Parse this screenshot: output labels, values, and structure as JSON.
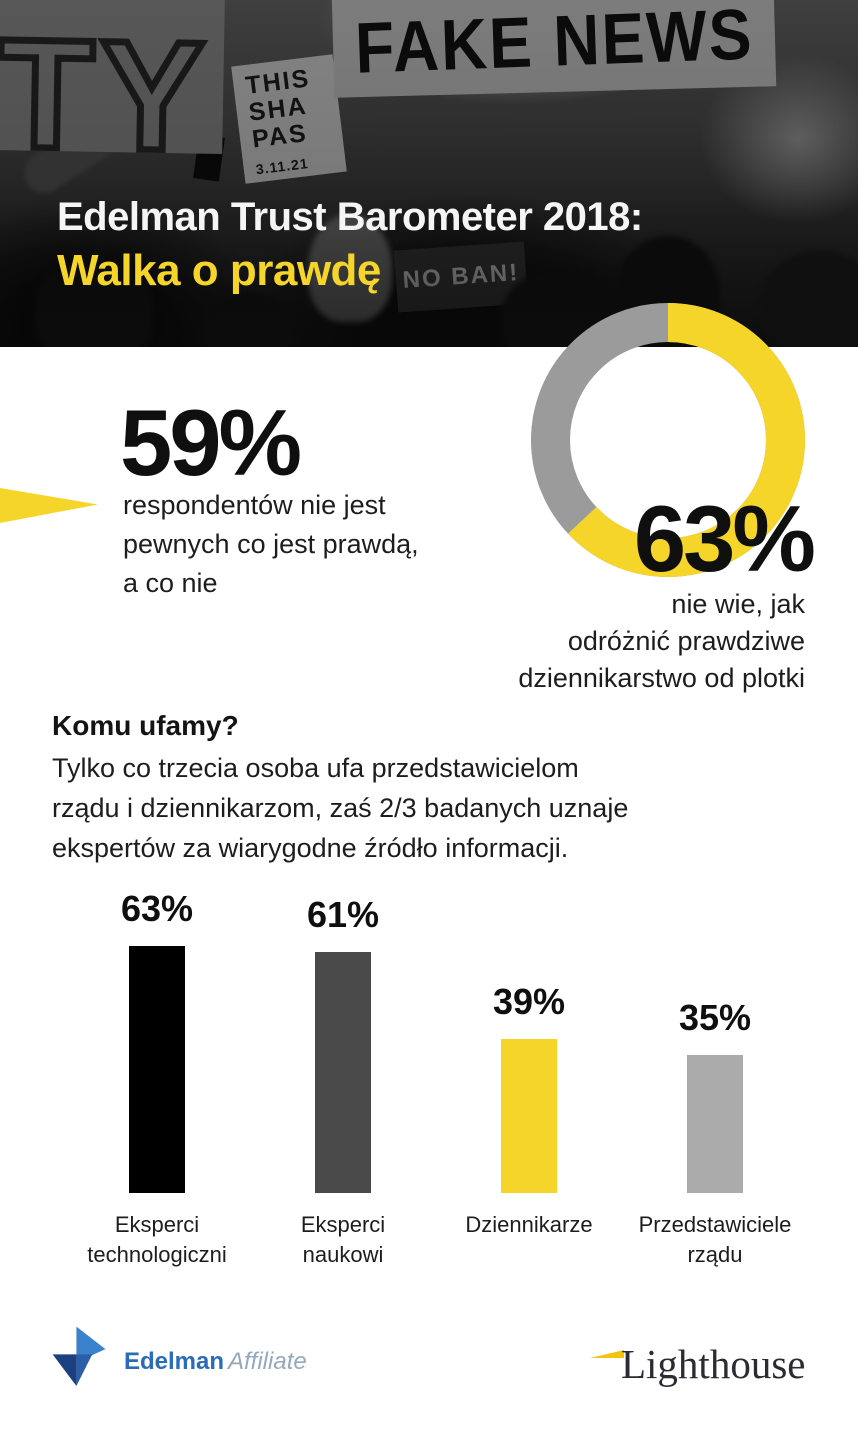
{
  "colors": {
    "accent_yellow": "#F6D52B",
    "donut_gray": "#9B9B9B",
    "bar_black": "#000000",
    "bar_dark_gray": "#4A4A4A",
    "bar_light_gray": "#ABABAB",
    "title_white": "#F5F5F5",
    "edelman_blue": "#2B6CB8",
    "edelman_navy": "#1C3F80",
    "edelman_mid_blue": "#2B5EA9",
    "edelman_light_blue": "#3B82CC",
    "affiliate_gray": "#95A9BE",
    "lighthouse_text": "#2B2B33",
    "beam_yellow": "#F2C40F"
  },
  "hero": {
    "title_line1": "Edelman Trust Barometer 2018:",
    "title_line2": "Walka o prawdę",
    "signs": {
      "ty": "TY",
      "fake_news": "FAKE NEWS",
      "this_line1": "THIS",
      "this_line2": "SHA",
      "this_line3": "PAS",
      "this_line4": "3.11.21",
      "no_ban": "NO BAN!"
    }
  },
  "stat_left": {
    "value": "59%",
    "lines": [
      "respondentów nie jest",
      "pewnych co jest prawdą,",
      "a co nie"
    ]
  },
  "stat_right": {
    "value": "63%",
    "lines": [
      "nie wie, jak",
      "odróżnić prawdziwe",
      "dziennikarstwo od plotki"
    ]
  },
  "trust_section": {
    "heading": "Komu ufamy?",
    "lines": [
      "Tylko co trzecia osoba ufa przedstawicielom",
      "rządu i dziennikarzom, zaś 2/3 badanych uznaje",
      "ekspertów za wiarygodne źródło informacji."
    ]
  },
  "chart_data": [
    {
      "type": "pie",
      "variant": "donut",
      "start_angle": "top",
      "direction": "clockwise",
      "segments": [
        {
          "label": "63%",
          "value": 63,
          "color": "#F6D52B"
        },
        {
          "label": "",
          "value": 37,
          "color": "#9B9B9B"
        }
      ],
      "annotation": "63%",
      "legend": false
    },
    {
      "type": "bar",
      "categories": [
        "Eksperci technologiczni",
        "Eksperci naukowi",
        "Dziennikarze",
        "Przedstawiciele rządu"
      ],
      "values": [
        63,
        61,
        39,
        35
      ],
      "value_labels": [
        "63%",
        "61%",
        "39%",
        "35%"
      ],
      "colors": [
        "#000000",
        "#4A4A4A",
        "#F6D52B",
        "#ABABAB"
      ],
      "ylim": [
        0,
        100
      ],
      "grid": false,
      "legend": false,
      "axes": false
    }
  ],
  "footer": {
    "edelman_name": "Edelman",
    "edelman_suffix": "Affiliate",
    "lighthouse_name": "Lighthouse"
  }
}
